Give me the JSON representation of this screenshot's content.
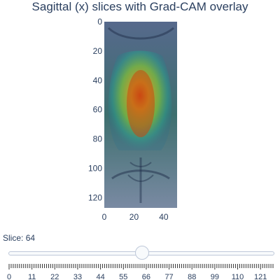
{
  "title": "Sagittal (x) slices with Grad-CAM overlay",
  "image": {
    "y_ticks": [
      "0",
      "20",
      "40",
      "60",
      "80",
      "100",
      "120"
    ],
    "x_ticks": [
      "0",
      "20",
      "40"
    ],
    "x_range": [
      0,
      49
    ],
    "y_range": [
      0,
      127
    ]
  },
  "slider": {
    "prefix": "Slice: ",
    "current_value": "64",
    "value": 64,
    "min": 0,
    "max": 127,
    "step_labels": [
      "0",
      "11",
      "22",
      "33",
      "44",
      "55",
      "66",
      "77",
      "88",
      "99",
      "110",
      "121"
    ]
  },
  "colors": {
    "text": "#2a3f5f",
    "rail": "#bec8d9",
    "heat_core": "#c0392b",
    "heat_mid": "#f1c40f",
    "heat_edge": "#1abc9c"
  }
}
